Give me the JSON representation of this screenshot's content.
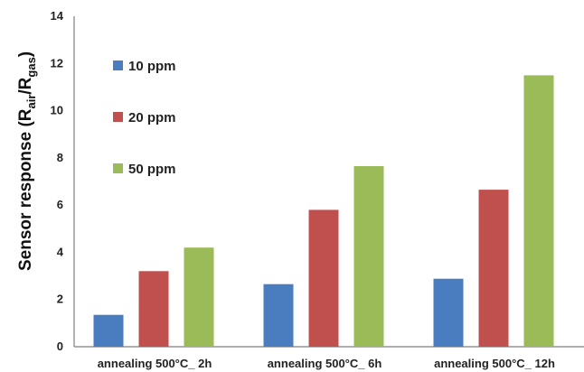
{
  "chart_data": {
    "type": "bar",
    "title": "",
    "xlabel": "",
    "ylabel": {
      "prefix": "Sensor response (R",
      "sub1": "air",
      "mid": "/R",
      "sub2": "gas",
      "suffix": ")"
    },
    "categories": [
      "annealing 500°C_ 2h",
      "annealing 500°C_ 6h",
      "annealing 500°C_ 12h"
    ],
    "series": [
      {
        "name": "10 ppm",
        "color": "#4a7cc0",
        "values": [
          1.35,
          2.65,
          2.88
        ]
      },
      {
        "name": "20 ppm",
        "color": "#c0504d",
        "values": [
          3.2,
          5.8,
          6.65
        ]
      },
      {
        "name": "50 ppm",
        "color": "#9bbb59",
        "values": [
          4.2,
          7.65,
          11.5
        ]
      }
    ],
    "ylim": [
      0,
      14
    ],
    "yticks": [
      0,
      2,
      4,
      6,
      8,
      10,
      12,
      14
    ],
    "grid": false,
    "legend_position": "top-left"
  }
}
